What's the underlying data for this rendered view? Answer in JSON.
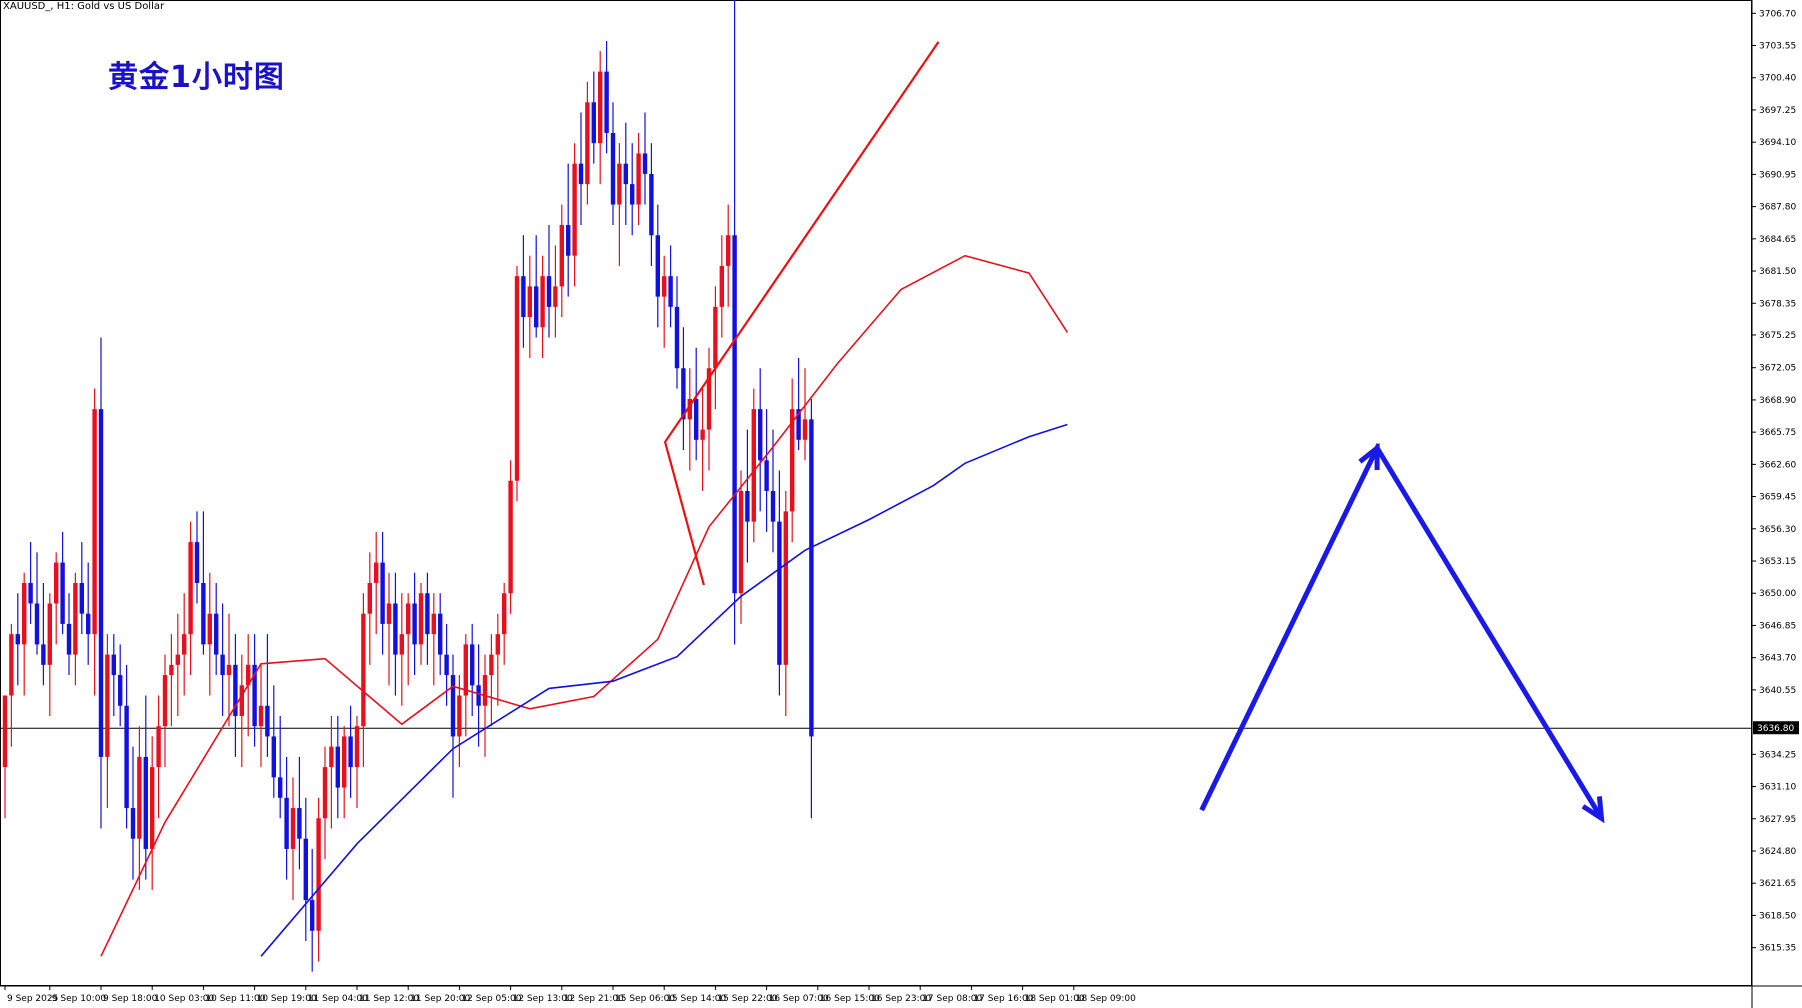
{
  "header": {
    "symbol": "XAUUSD_",
    "timeframe": "H1",
    "description": "Gold vs US Dollar",
    "text": "XAUUSD_, H1:  Gold vs US Dollar"
  },
  "annotation_title": "黄金1小时图",
  "current_price_label": "3636.80",
  "colors": {
    "bull_candle": "#e8101e",
    "bear_candle": "#1010e0",
    "ma_fast": "#e8101e",
    "ma_slow": "#1010e0",
    "trendline": "#ee1010",
    "arrow": "#1a1ae8",
    "title": "#1a12c8"
  },
  "chart_data": {
    "type": "candlestick",
    "ylim": [
      3611.6,
      3708.0
    ],
    "y_ticks": [
      "3706.70",
      "3703.55",
      "3700.40",
      "3697.25",
      "3694.10",
      "3690.95",
      "3687.80",
      "3684.65",
      "3681.50",
      "3678.35",
      "3675.25",
      "3672.05",
      "3668.90",
      "3665.75",
      "3662.60",
      "3659.45",
      "3656.30",
      "3653.15",
      "3650.00",
      "3646.85",
      "3643.70",
      "3640.55",
      "3634.25",
      "3631.10",
      "3627.95",
      "3624.80",
      "3621.65",
      "3618.50",
      "3615.35"
    ],
    "x_ticks": [
      "9 Sep 2025",
      "9 Sep 10:00",
      "9 Sep 18:00",
      "10 Sep 03:00",
      "10 Sep 11:00",
      "10 Sep 19:00",
      "11 Sep 04:00",
      "11 Sep 12:00",
      "11 Sep 20:00",
      "12 Sep 05:00",
      "12 Sep 13:00",
      "12 Sep 21:00",
      "15 Sep 06:00",
      "15 Sep 14:00",
      "15 Sep 22:00",
      "16 Sep 07:00",
      "16 Sep 15:00",
      "16 Sep 23:00",
      "17 Sep 08:00",
      "17 Sep 16:00",
      "18 Sep 01:00",
      "18 Sep 09:00"
    ],
    "x_tick_bars": [
      0,
      7,
      15,
      23,
      31,
      39,
      47,
      55,
      63,
      71,
      79,
      87,
      95,
      103,
      111,
      119,
      127,
      135,
      143,
      151,
      159,
      167
    ],
    "current_price": 3636.8,
    "candles": [
      [
        3633,
        3640,
        3628,
        3640
      ],
      [
        3640,
        3647,
        3635,
        3646
      ],
      [
        3646,
        3650,
        3641,
        3645
      ],
      [
        3645,
        3652,
        3640,
        3651
      ],
      [
        3651,
        3655,
        3647,
        3649
      ],
      [
        3649,
        3654,
        3644,
        3645
      ],
      [
        3645,
        3651,
        3641,
        3643
      ],
      [
        3643,
        3650,
        3638,
        3649
      ],
      [
        3649,
        3654,
        3645,
        3653
      ],
      [
        3653,
        3656,
        3646,
        3647
      ],
      [
        3647,
        3650,
        3642,
        3644
      ],
      [
        3644,
        3652,
        3641,
        3651
      ],
      [
        3651,
        3655,
        3646,
        3648
      ],
      [
        3648,
        3653,
        3643,
        3646
      ],
      [
        3646,
        3670,
        3640,
        3668
      ],
      [
        3668,
        3675,
        3627,
        3634
      ],
      [
        3634,
        3646,
        3629,
        3644
      ],
      [
        3644,
        3646,
        3638,
        3642
      ],
      [
        3642,
        3645,
        3637,
        3639
      ],
      [
        3639,
        3643,
        3627,
        3629
      ],
      [
        3629,
        3635,
        3622,
        3626
      ],
      [
        3626,
        3637,
        3621,
        3634
      ],
      [
        3634,
        3640,
        3622,
        3625
      ],
      [
        3625,
        3636,
        3621,
        3633
      ],
      [
        3633,
        3640,
        3628,
        3637
      ],
      [
        3637,
        3644,
        3633,
        3642
      ],
      [
        3642,
        3646,
        3637,
        3643
      ],
      [
        3643,
        3648,
        3638,
        3644
      ],
      [
        3644,
        3650,
        3640,
        3646
      ],
      [
        3646,
        3657,
        3642,
        3655
      ],
      [
        3655,
        3658,
        3649,
        3651
      ],
      [
        3651,
        3658,
        3644,
        3645
      ],
      [
        3645,
        3652,
        3640,
        3648
      ],
      [
        3648,
        3651,
        3642,
        3644
      ],
      [
        3644,
        3649,
        3638,
        3642
      ],
      [
        3642,
        3648,
        3637,
        3643
      ],
      [
        3643,
        3646,
        3634,
        3638
      ],
      [
        3638,
        3644,
        3633,
        3641
      ],
      [
        3641,
        3646,
        3636,
        3643
      ],
      [
        3643,
        3646,
        3635,
        3637
      ],
      [
        3637,
        3643,
        3633,
        3639
      ],
      [
        3639,
        3646,
        3634,
        3636
      ],
      [
        3636,
        3641,
        3630,
        3632
      ],
      [
        3632,
        3638,
        3628,
        3630
      ],
      [
        3630,
        3634,
        3622,
        3625
      ],
      [
        3625,
        3632,
        3620,
        3629
      ],
      [
        3629,
        3634,
        3623,
        3626
      ],
      [
        3626,
        3630,
        3616,
        3620
      ],
      [
        3620,
        3625,
        3613,
        3617
      ],
      [
        3617,
        3630,
        3614,
        3628
      ],
      [
        3628,
        3635,
        3624,
        3633
      ],
      [
        3633,
        3638,
        3627,
        3635
      ],
      [
        3635,
        3638,
        3628,
        3631
      ],
      [
        3631,
        3637,
        3628,
        3636
      ],
      [
        3636,
        3639,
        3630,
        3633
      ],
      [
        3633,
        3638,
        3629,
        3637
      ],
      [
        3637,
        3650,
        3633,
        3648
      ],
      [
        3648,
        3654,
        3643,
        3651
      ],
      [
        3651,
        3656,
        3646,
        3653
      ],
      [
        3653,
        3656,
        3644,
        3647
      ],
      [
        3647,
        3652,
        3641,
        3649
      ],
      [
        3649,
        3652,
        3640,
        3644
      ],
      [
        3644,
        3650,
        3639,
        3646
      ],
      [
        3646,
        3650,
        3641,
        3649
      ],
      [
        3649,
        3652,
        3642,
        3645
      ],
      [
        3645,
        3651,
        3643,
        3650
      ],
      [
        3650,
        3652,
        3643,
        3646
      ],
      [
        3646,
        3650,
        3641,
        3648
      ],
      [
        3648,
        3650,
        3642,
        3644
      ],
      [
        3644,
        3647,
        3639,
        3642
      ],
      [
        3642,
        3644,
        3630,
        3636
      ],
      [
        3636,
        3642,
        3633,
        3640
      ],
      [
        3640,
        3646,
        3636,
        3645
      ],
      [
        3645,
        3647,
        3638,
        3641
      ],
      [
        3641,
        3645,
        3635,
        3639
      ],
      [
        3639,
        3644,
        3634,
        3642
      ],
      [
        3642,
        3646,
        3637,
        3644
      ],
      [
        3644,
        3648,
        3639,
        3646
      ],
      [
        3646,
        3651,
        3643,
        3650
      ],
      [
        3650,
        3663,
        3648,
        3661
      ],
      [
        3661,
        3682,
        3659,
        3681
      ],
      [
        3681,
        3685,
        3674,
        3677
      ],
      [
        3677,
        3683,
        3673,
        3680
      ],
      [
        3680,
        3685,
        3675,
        3676
      ],
      [
        3676,
        3683,
        3673,
        3681
      ],
      [
        3681,
        3686,
        3675,
        3678
      ],
      [
        3678,
        3684,
        3675,
        3680
      ],
      [
        3680,
        3688,
        3677,
        3686
      ],
      [
        3686,
        3692,
        3679,
        3683
      ],
      [
        3683,
        3694,
        3680,
        3692
      ],
      [
        3692,
        3697,
        3686,
        3690
      ],
      [
        3690,
        3700,
        3688,
        3698
      ],
      [
        3698,
        3701,
        3692,
        3694
      ],
      [
        3694,
        3703,
        3690,
        3701
      ],
      [
        3701,
        3704,
        3693,
        3695
      ],
      [
        3695,
        3698,
        3686,
        3688
      ],
      [
        3688,
        3694,
        3682,
        3692
      ],
      [
        3692,
        3696,
        3686,
        3690
      ],
      [
        3690,
        3694,
        3685,
        3688
      ],
      [
        3688,
        3695,
        3686,
        3693
      ],
      [
        3693,
        3697,
        3688,
        3691
      ],
      [
        3691,
        3694,
        3682,
        3685
      ],
      [
        3685,
        3688,
        3676,
        3679
      ],
      [
        3679,
        3683,
        3674,
        3681
      ],
      [
        3681,
        3684,
        3676,
        3678
      ],
      [
        3678,
        3681,
        3670,
        3672
      ],
      [
        3672,
        3676,
        3664,
        3667
      ],
      [
        3667,
        3672,
        3662,
        3669
      ],
      [
        3669,
        3674,
        3663,
        3665
      ],
      [
        3665,
        3670,
        3660,
        3666
      ],
      [
        3666,
        3674,
        3662,
        3672
      ],
      [
        3672,
        3680,
        3668,
        3678
      ],
      [
        3678,
        3685,
        3675,
        3682
      ],
      [
        3682,
        3688,
        3678,
        3685
      ],
      [
        3685,
        3708,
        3645,
        3650
      ],
      [
        3650,
        3662,
        3647,
        3660
      ],
      [
        3660,
        3666,
        3653,
        3657
      ],
      [
        3657,
        3670,
        3655,
        3668
      ],
      [
        3668,
        3672,
        3658,
        3663
      ],
      [
        3663,
        3668,
        3656,
        3660
      ],
      [
        3660,
        3666,
        3654,
        3657
      ],
      [
        3657,
        3662,
        3640,
        3643
      ],
      [
        3643,
        3660,
        3638,
        3658
      ],
      [
        3658,
        3671,
        3655,
        3668
      ],
      [
        3668,
        3673,
        3664,
        3665
      ],
      [
        3665,
        3672,
        3663,
        3667
      ],
      [
        3667,
        3669,
        3628,
        3636
      ]
    ],
    "ma_fast": [
      [
        15,
        3614.5
      ],
      [
        25,
        3627.6
      ],
      [
        40,
        3643.1
      ],
      [
        50,
        3643.6
      ],
      [
        62,
        3637.2
      ],
      [
        70,
        3640.9
      ],
      [
        82,
        3638.7
      ],
      [
        92,
        3639.9
      ],
      [
        102,
        3645.5
      ],
      [
        110,
        3656.5
      ],
      [
        120,
        3664.3
      ],
      [
        130,
        3672.4
      ],
      [
        140,
        3679.7
      ],
      [
        150,
        3683.0
      ],
      [
        160,
        3681.3
      ],
      [
        166,
        3675.5
      ]
    ],
    "ma_slow": [
      [
        40,
        3614.5
      ],
      [
        55,
        3625.5
      ],
      [
        70,
        3634.8
      ],
      [
        85,
        3640.7
      ],
      [
        95,
        3641.4
      ],
      [
        105,
        3643.8
      ],
      [
        115,
        3649.7
      ],
      [
        125,
        3654.2
      ],
      [
        135,
        3657.2
      ],
      [
        145,
        3660.5
      ],
      [
        150,
        3662.7
      ],
      [
        160,
        3665.3
      ],
      [
        166,
        3666.5
      ]
    ],
    "trendline": [
      [
        3692.5,
        3703.9
      ],
      [
        3665.7,
        3664.8
      ],
      [
        3669.5,
        3650.8
      ]
    ],
    "arrow_path": [
      [
        3718.3,
        3628.8
      ],
      [
        3735.5,
        3664.2
      ],
      [
        3757.5,
        3628.0
      ]
    ]
  }
}
